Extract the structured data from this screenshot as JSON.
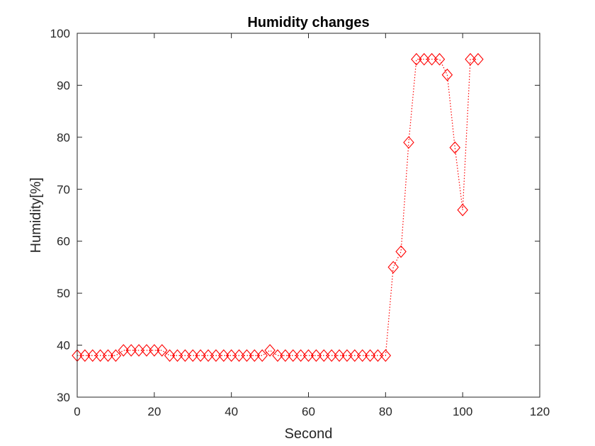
{
  "chart_data": {
    "type": "line",
    "title": "Humidity changes",
    "xlabel": "Second",
    "ylabel": "Humidity[%]",
    "xlim": [
      0,
      120
    ],
    "ylim": [
      30,
      100
    ],
    "xticks": [
      0,
      20,
      40,
      60,
      80,
      100,
      120
    ],
    "yticks": [
      30,
      40,
      50,
      60,
      70,
      80,
      90,
      100
    ],
    "grid": false,
    "series": [
      {
        "name": "Humidity",
        "color": "#ff0000",
        "line_style": "dotted",
        "marker": "diamond",
        "x": [
          0,
          2,
          4,
          6,
          8,
          10,
          12,
          14,
          16,
          18,
          20,
          22,
          24,
          26,
          28,
          30,
          32,
          34,
          36,
          38,
          40,
          42,
          44,
          46,
          48,
          50,
          52,
          54,
          56,
          58,
          60,
          62,
          64,
          66,
          68,
          70,
          72,
          74,
          76,
          78,
          80,
          82,
          84,
          86,
          88,
          90,
          92,
          94,
          96,
          98,
          100,
          102,
          104
        ],
        "y": [
          38,
          38,
          38,
          38,
          38,
          38,
          39,
          39,
          39,
          39,
          39,
          39,
          38,
          38,
          38,
          38,
          38,
          38,
          38,
          38,
          38,
          38,
          38,
          38,
          38,
          39,
          38,
          38,
          38,
          38,
          38,
          38,
          38,
          38,
          38,
          38,
          38,
          38,
          38,
          38,
          38,
          55,
          58,
          79,
          95,
          95,
          95,
          95,
          92,
          78,
          66,
          95,
          95
        ]
      }
    ]
  }
}
